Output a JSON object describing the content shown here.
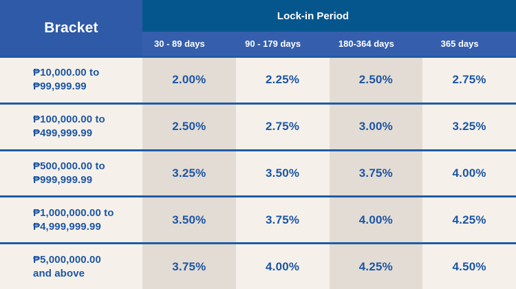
{
  "colors": {
    "bracket_header_bg": "#2e5aa7",
    "lockin_header_bg": "#06568e",
    "period_row_bg": "#355fad",
    "row_cream": "#f5f1ea",
    "row_beige": "#e3dcd4",
    "divider_blue": "#1e5ba6",
    "text_blue": "#1d55a4",
    "header_text": "#ffffff"
  },
  "table": {
    "bracket_header": "Bracket",
    "lockin_header": "Lock-in Period",
    "periods": [
      "30 - 89 days",
      "90 - 179 days",
      "180-364 days",
      "365 days"
    ],
    "rows": [
      {
        "bracket": [
          "₱10,000.00 to",
          "₱99,999.99"
        ],
        "rates": [
          "2.00%",
          "2.25%",
          "2.50%",
          "2.75%"
        ]
      },
      {
        "bracket": [
          "₱100,000.00 to",
          "₱499,999.99"
        ],
        "rates": [
          "2.50%",
          "2.75%",
          "3.00%",
          "3.25%"
        ]
      },
      {
        "bracket": [
          "₱500,000.00 to",
          "₱999,999.99"
        ],
        "rates": [
          "3.25%",
          "3.50%",
          "3.75%",
          "4.00%"
        ]
      },
      {
        "bracket": [
          "₱1,000,000.00 to",
          "₱4,999,999.99"
        ],
        "rates": [
          "3.50%",
          "3.75%",
          "4.00%",
          "4.25%"
        ]
      },
      {
        "bracket": [
          "₱5,000,000.00",
          "and above"
        ],
        "rates": [
          "3.75%",
          "4.00%",
          "4.25%",
          "4.50%"
        ]
      }
    ]
  },
  "chart_data": {
    "type": "table",
    "title": "Lock-in Period",
    "columns": [
      "Bracket",
      "30 - 89 days",
      "90 - 179 days",
      "180-364 days",
      "365 days"
    ],
    "rows": [
      [
        "₱10,000.00 to ₱99,999.99",
        "2.00%",
        "2.25%",
        "2.50%",
        "2.75%"
      ],
      [
        "₱100,000.00 to ₱499,999.99",
        "2.50%",
        "2.75%",
        "3.00%",
        "3.25%"
      ],
      [
        "₱500,000.00 to ₱999,999.99",
        "3.25%",
        "3.50%",
        "3.75%",
        "4.00%"
      ],
      [
        "₱1,000,000.00 to ₱4,999,999.99",
        "3.50%",
        "3.75%",
        "4.00%",
        "4.25%"
      ],
      [
        "₱5,000,000.00 and above",
        "3.75%",
        "4.00%",
        "4.25%",
        "4.50%"
      ]
    ]
  }
}
